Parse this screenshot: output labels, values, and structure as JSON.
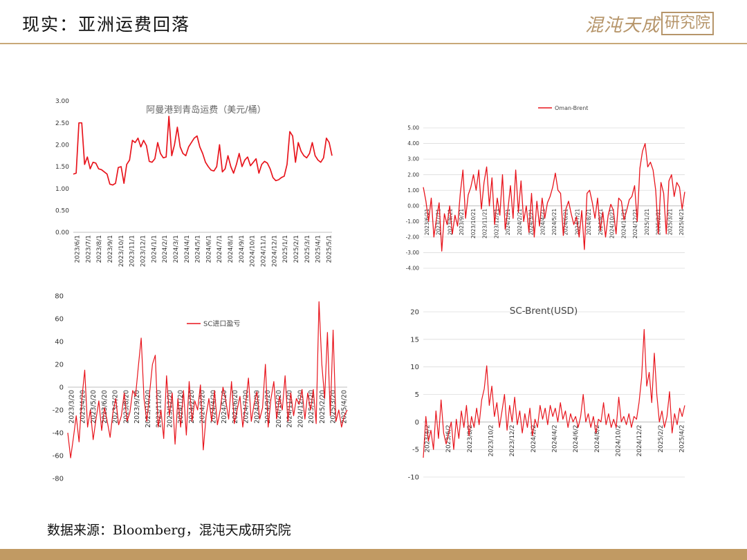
{
  "header": {
    "title": "现实：亚洲运费回落",
    "logo_script": "混沌天成",
    "logo_stamp": "研究院"
  },
  "footer": {
    "source": "数据来源：Bloomberg，混沌天成研究院"
  },
  "colors": {
    "series": "#e8141c",
    "accent": "#c19a63",
    "rule": "#c8a878",
    "axis": "#333333"
  },
  "chart_data": [
    {
      "type": "line",
      "title": "阿曼港到青岛运费（美元/桶）",
      "xlabel": "",
      "ylabel": "",
      "ylim": [
        0,
        3
      ],
      "ytick_labels": [
        "0.00",
        "0.50",
        "1.00",
        "1.50",
        "2.00",
        "2.50",
        "3.00"
      ],
      "xtick_labels": [
        "2023/6/1",
        "2023/7/1",
        "2023/8/1",
        "2023/9/1",
        "2023/10/1",
        "2023/11/1",
        "2023/12/1",
        "2024/1/1",
        "2024/2/1",
        "2024/3/1",
        "2024/4/1",
        "2024/5/1",
        "2024/6/1",
        "2024/7/1",
        "2024/8/1",
        "2024/9/1",
        "2024/10/1",
        "2024/11/1",
        "2024/12/1",
        "2025/1/1",
        "2025/2/1",
        "2025/3/1",
        "2025/4/1",
        "2025/5/1"
      ],
      "grid": false,
      "legend": "none",
      "series": [
        {
          "values": [
            1.33,
            1.35,
            2.5,
            2.5,
            1.55,
            1.72,
            1.45,
            1.6,
            1.58,
            1.45,
            1.43,
            1.38,
            1.33,
            1.1,
            1.08,
            1.12,
            1.48,
            1.5,
            1.12,
            1.55,
            1.65,
            2.1,
            2.05,
            2.15,
            1.95,
            2.1,
            1.98,
            1.62,
            1.6,
            1.68,
            2.05,
            1.8,
            1.7,
            1.72,
            2.65,
            1.75,
            2.0,
            2.4,
            1.95,
            1.8,
            1.75,
            1.95,
            2.05,
            2.15,
            2.2,
            1.95,
            1.8,
            1.6,
            1.5,
            1.42,
            1.4,
            1.5,
            2.0,
            1.38,
            1.45,
            1.75,
            1.5,
            1.35,
            1.55,
            1.8,
            1.5,
            1.65,
            1.72,
            1.52,
            1.6,
            1.68,
            1.35,
            1.55,
            1.62,
            1.58,
            1.45,
            1.25,
            1.18,
            1.2,
            1.25,
            1.28,
            1.55,
            2.3,
            2.2,
            1.6,
            2.05,
            1.85,
            1.75,
            1.7,
            1.8,
            2.05,
            1.75,
            1.65,
            1.6,
            1.7,
            2.15,
            2.05,
            1.75
          ]
        }
      ]
    },
    {
      "type": "line",
      "title": "",
      "xlabel": "",
      "ylabel": "",
      "ylim": [
        -4,
        5
      ],
      "ytick_labels": [
        "-4.00",
        "-3.00",
        "-2.00",
        "-1.00",
        "0.00",
        "1.00",
        "2.00",
        "3.00",
        "4.00",
        "5.00"
      ],
      "xtick_labels": [
        "2023/6/21",
        "2023/7/21",
        "2023/8/21",
        "2023/9/21",
        "2023/10/21",
        "2023/11/21",
        "2023/12/21",
        "2024/1/21",
        "2024/2/21",
        "2024/3/21",
        "2024/4/21",
        "2024/5/21",
        "2024/6/21",
        "2024/7/21",
        "2024/8/21",
        "2024/9/21",
        "2024/10/21",
        "2024/11/21",
        "2024/12/21",
        "2025/1/21",
        "2025/2/21",
        "2025/3/21",
        "2025/4/21"
      ],
      "grid": true,
      "legend": "top-center",
      "series": [
        {
          "name": "Oman-Brent",
          "values": [
            1.2,
            0.3,
            -1.0,
            0.5,
            -2.0,
            -0.8,
            0.2,
            -2.9,
            -0.5,
            -1.2,
            0.0,
            -1.8,
            -0.6,
            -1.3,
            0.8,
            2.3,
            -0.8,
            0.7,
            1.2,
            2.0,
            1.0,
            2.3,
            -0.2,
            1.5,
            2.5,
            0.0,
            1.8,
            -1.2,
            0.5,
            -0.6,
            2.0,
            -1.5,
            -0.3,
            1.3,
            -0.8,
            2.3,
            -0.4,
            1.6,
            -1.0,
            0.0,
            -1.7,
            0.8,
            -2.0,
            0.3,
            -1.3,
            0.5,
            -0.8,
            0.2,
            0.6,
            1.2,
            2.1,
            1.0,
            0.8,
            -1.9,
            -0.2,
            0.3,
            -0.5,
            -1.2,
            -0.7,
            -2.0,
            -0.3,
            -2.8,
            0.8,
            1.0,
            0.2,
            -0.8,
            0.5,
            -1.6,
            -0.4,
            -2.0,
            -0.6,
            0.1,
            -0.3,
            -1.8,
            0.5,
            0.3,
            -0.9,
            -0.3,
            0.4,
            0.6,
            1.3,
            -1.0,
            2.4,
            3.5,
            4.0,
            2.5,
            2.8,
            2.3,
            1.0,
            -1.8,
            1.5,
            0.8,
            -1.8,
            1.6,
            2.0,
            0.6,
            1.5,
            1.2,
            -0.2,
            0.9
          ]
        }
      ]
    },
    {
      "type": "line",
      "title": "",
      "xlabel": "",
      "ylabel": "",
      "ylim": [
        -80,
        80
      ],
      "ytick_labels": [
        "-80",
        "-60",
        "-40",
        "-20",
        "0",
        "20",
        "40",
        "60",
        "80"
      ],
      "xtick_labels": [
        "2023/3/20",
        "2023/4/20",
        "2023/5/20",
        "2023/6/20",
        "2023/7/20",
        "2023/8/20",
        "2023/9/20",
        "2023/10/20",
        "2023/11/20",
        "2023/12/20",
        "2024/1/20",
        "2024/2/20",
        "2024/3/20",
        "2024/4/20",
        "2024/5/20",
        "2024/6/20",
        "2024/7/20",
        "2024/8/20",
        "2024/9/20",
        "2024/10/20",
        "2024/11/20",
        "2024/12/20",
        "2025/1/20",
        "2025/2/20",
        "2025/3/20",
        "2025/4/20"
      ],
      "grid": false,
      "legend": "top-center",
      "series": [
        {
          "name": "SC进口盈亏",
          "values": [
            -40,
            -62,
            -44,
            -25,
            -48,
            -10,
            15,
            -35,
            -20,
            -46,
            -28,
            -12,
            -38,
            -18,
            -30,
            -44,
            -22,
            -10,
            -33,
            -25,
            -5,
            -30,
            -22,
            -3,
            -8,
            18,
            43,
            -10,
            -30,
            -5,
            20,
            28,
            -35,
            -20,
            -45,
            10,
            -25,
            -5,
            -50,
            -10,
            -35,
            -3,
            -42,
            5,
            -30,
            -12,
            -20,
            2,
            -55,
            -25,
            -10,
            -30,
            -3,
            -33,
            -20,
            0,
            -12,
            -28,
            5,
            -32,
            -20,
            -8,
            -35,
            -15,
            8,
            -30,
            -15,
            -4,
            -28,
            -18,
            20,
            -35,
            -10,
            5,
            -28,
            -8,
            -20,
            10,
            -30,
            -5,
            -25,
            -10,
            -15,
            -2,
            -28,
            -5,
            -20,
            -2,
            -32,
            75,
            20,
            -10,
            48,
            -25,
            50,
            -30,
            -20,
            -35,
            -25,
            -20
          ]
        }
      ]
    },
    {
      "type": "line",
      "title": "SC-Brent(USD)",
      "xlabel": "",
      "ylabel": "",
      "ylim": [
        -10,
        20
      ],
      "ytick_labels": [
        "-10",
        "-5",
        "0",
        "5",
        "10",
        "15",
        "20"
      ],
      "xtick_labels": [
        "2023/4/2",
        "2023/6/2",
        "2023/8/2",
        "2023/10/2",
        "2023/12/2",
        "2024/2/2",
        "2024/4/2",
        "2024/6/2",
        "2024/8/2",
        "2024/10/2",
        "2024/12/2",
        "2025/2/2",
        "2025/4/2"
      ],
      "grid": true,
      "legend": "none",
      "series": [
        {
          "values": [
            -6.5,
            1.0,
            -3.5,
            -1.5,
            -5.0,
            2.0,
            -3.0,
            4.0,
            -2.0,
            -4.0,
            -2.0,
            0.0,
            -5.0,
            0.5,
            -3.0,
            2.0,
            -1.0,
            3.0,
            -2.5,
            1.0,
            -1.0,
            2.5,
            -0.5,
            4.0,
            6.0,
            10.2,
            3.0,
            6.5,
            1.0,
            3.5,
            -1.0,
            2.0,
            5.0,
            -1.5,
            3.0,
            0.0,
            4.5,
            -0.5,
            2.0,
            -2.0,
            1.5,
            -1.0,
            2.5,
            -2.5,
            0.5,
            -1.0,
            3.0,
            0.5,
            2.5,
            -0.5,
            3.0,
            1.0,
            2.5,
            0.0,
            3.5,
            0.5,
            2.0,
            -1.0,
            1.5,
            0.0,
            1.0,
            -1.0,
            1.0,
            5.0,
            0.0,
            1.5,
            -1.0,
            1.0,
            -2.0,
            0.5,
            0.0,
            3.5,
            -0.5,
            1.5,
            -1.0,
            0.5,
            -1.0,
            4.5,
            0.0,
            1.0,
            -0.5,
            1.5,
            -1.0,
            1.0,
            0.5,
            3.5,
            8.0,
            16.8,
            6.5,
            9.0,
            3.5,
            12.5,
            5.0,
            0.0,
            2.0,
            -1.0,
            1.0,
            5.5,
            -2.0,
            1.5,
            -0.5,
            2.5,
            1.0,
            3.0
          ]
        }
      ]
    }
  ]
}
